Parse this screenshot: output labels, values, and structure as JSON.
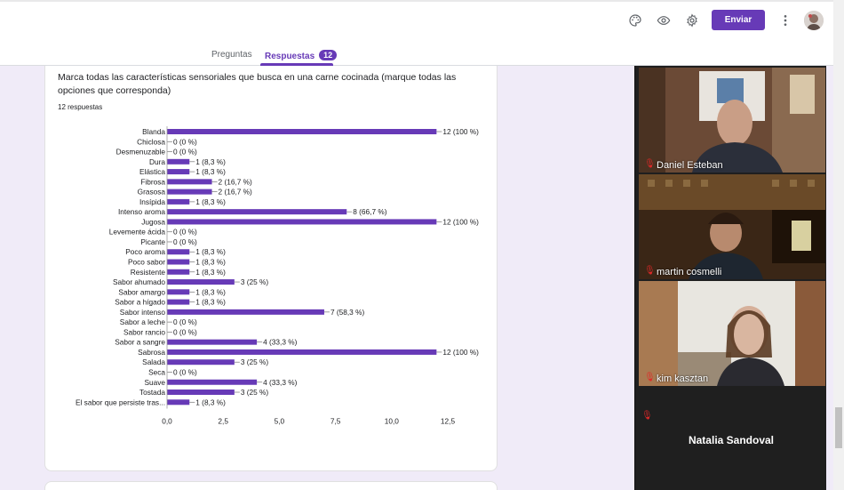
{
  "header": {
    "send_label": "Enviar",
    "icons": [
      "palette-icon",
      "eye-icon",
      "gear-icon",
      "more-vert-icon"
    ],
    "accent_color": "#673ab7"
  },
  "tabs": [
    {
      "label": "Preguntas",
      "active": false
    },
    {
      "label": "Respuestas",
      "active": true,
      "badge": "12"
    }
  ],
  "question": {
    "text": "Marca todas las características sensoriales que busca en una carne cocinada (marque todas las opciones que corresponda)",
    "responses": "12 respuestas"
  },
  "chart_data": {
    "type": "bar",
    "orientation": "horizontal",
    "categories": [
      "Blanda",
      "Chiclosa",
      "Desmenuzable",
      "Dura",
      "Elástica",
      "Fibrosa",
      "Grasosa",
      "Insípida",
      "Intenso aroma",
      "Jugosa",
      "Levemente ácida",
      "Picante",
      "Poco aroma",
      "Poco sabor",
      "Resistente",
      "Sabor ahumado",
      "Sabor amargo",
      "Sabor a hígado",
      "Sabor intenso",
      "Sabor a leche",
      "Sabor rancio",
      "Sabor a sangre",
      "Sabrosa",
      "Salada",
      "Seca",
      "Suave",
      "Tostada",
      "El sabor que persiste tras..."
    ],
    "values": [
      12,
      0,
      0,
      1,
      1,
      2,
      2,
      1,
      8,
      12,
      0,
      0,
      1,
      1,
      1,
      3,
      1,
      1,
      7,
      0,
      0,
      4,
      12,
      3,
      0,
      4,
      3,
      1
    ],
    "value_labels": [
      "12 (100 %)",
      "0 (0 %)",
      "0 (0 %)",
      "1 (8,3 %)",
      "1 (8,3 %)",
      "2 (16,7 %)",
      "2 (16,7 %)",
      "1 (8,3 %)",
      "8 (66,7 %)",
      "12 (100 %)",
      "0 (0 %)",
      "0 (0 %)",
      "1 (8,3 %)",
      "1 (8,3 %)",
      "1 (8,3 %)",
      "3 (25 %)",
      "1 (8,3 %)",
      "1 (8,3 %)",
      "7 (58,3 %)",
      "0 (0 %)",
      "0 (0 %)",
      "4 (33,3 %)",
      "12 (100 %)",
      "3 (25 %)",
      "0 (0 %)",
      "4 (33,3 %)",
      "3 (25 %)",
      "1 (8,3 %)"
    ],
    "xticks": [
      "0,0",
      "2,5",
      "5,0",
      "7,5",
      "10,0",
      "12,5"
    ],
    "xlim": [
      0,
      12.5
    ],
    "bar_color": "#673ab7",
    "grid": false
  },
  "meeting": {
    "participants": [
      {
        "name": "Daniel Esteban",
        "muted": true
      },
      {
        "name": "martin cosmelli",
        "muted": true
      },
      {
        "name": "kim kasztan",
        "muted": true
      }
    ],
    "presenter_name": "Natalia Sandoval",
    "mute_color": "#e02828"
  }
}
